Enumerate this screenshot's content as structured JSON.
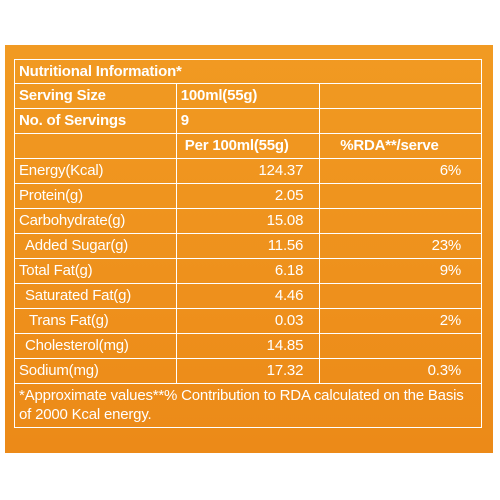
{
  "colors": {
    "background": "#ffffff",
    "panel": "#ef8f1d",
    "text": "#ffffff"
  },
  "title": "Nutritional Information*",
  "serving_size": {
    "label": "Serving Size",
    "value": "100ml(55g)"
  },
  "servings": {
    "label": "No. of Servings",
    "value": "9"
  },
  "columns": {
    "per100": "Per 100ml(55g)",
    "rda": "%RDA**/serve"
  },
  "rows": [
    {
      "label": "Energy(Kcal)",
      "value": "124.37",
      "rda": "6%"
    },
    {
      "label": "Protein(g)",
      "value": "2.05",
      "rda": ""
    },
    {
      "label": "Carbohydrate(g)",
      "value": "15.08",
      "rda": ""
    },
    {
      "label": "Added Sugar(g)",
      "value": "11.56",
      "rda": "23%"
    },
    {
      "label": "Total Fat(g)",
      "value": "6.18",
      "rda": "9%"
    },
    {
      "label": "Saturated Fat(g)",
      "value": "4.46",
      "rda": ""
    },
    {
      "label": "Trans Fat(g)",
      "value": "0.03",
      "rda": "2%"
    },
    {
      "label": "Cholesterol(mg)",
      "value": "14.85",
      "rda": ""
    },
    {
      "label": "Sodium(mg)",
      "value": "17.32",
      "rda": "0.3%"
    }
  ],
  "footnote": "*Approximate values**% Contribution to RDA calculated on the Basis of 2000 Kcal energy."
}
